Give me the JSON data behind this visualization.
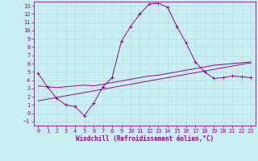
{
  "xlabel": "Windchill (Refroidissement éolien,°C)",
  "background_color": "#c8eef0",
  "grid_color": "#b0d8dc",
  "line_color": "#990099",
  "xlim": [
    -0.5,
    23.5
  ],
  "ylim": [
    -1.5,
    13.5
  ],
  "xticks": [
    0,
    1,
    2,
    3,
    4,
    5,
    6,
    7,
    8,
    9,
    10,
    11,
    12,
    13,
    14,
    15,
    16,
    17,
    18,
    19,
    20,
    21,
    22,
    23
  ],
  "yticks": [
    -1,
    0,
    1,
    2,
    3,
    4,
    5,
    6,
    7,
    8,
    9,
    10,
    11,
    12,
    13
  ],
  "line1_x": [
    0,
    1,
    2,
    3,
    4,
    5,
    6,
    7,
    8,
    9,
    10,
    11,
    12,
    13,
    14,
    15,
    16,
    17,
    18,
    19,
    20,
    21,
    22,
    23
  ],
  "line1_y": [
    4.8,
    3.2,
    1.8,
    1.0,
    0.8,
    -0.3,
    1.2,
    3.2,
    4.3,
    8.7,
    10.5,
    12.0,
    13.2,
    13.3,
    12.8,
    10.5,
    8.5,
    6.2,
    5.0,
    4.2,
    4.3,
    4.5,
    4.4,
    4.3
  ],
  "line2_x": [
    0,
    1,
    2,
    3,
    4,
    5,
    6,
    7,
    8,
    9,
    10,
    11,
    12,
    13,
    14,
    15,
    16,
    17,
    18,
    19,
    20,
    21,
    22,
    23
  ],
  "line2_y": [
    3.3,
    3.2,
    3.1,
    3.2,
    3.3,
    3.4,
    3.3,
    3.5,
    3.7,
    3.9,
    4.1,
    4.3,
    4.5,
    4.6,
    4.8,
    5.0,
    5.2,
    5.4,
    5.6,
    5.8,
    5.9,
    6.0,
    6.1,
    6.2
  ],
  "line3_x": [
    0,
    1,
    2,
    3,
    4,
    5,
    6,
    7,
    8,
    9,
    10,
    11,
    12,
    13,
    14,
    15,
    16,
    17,
    18,
    19,
    20,
    21,
    22,
    23
  ],
  "line3_y": [
    1.5,
    1.7,
    1.9,
    2.1,
    2.3,
    2.5,
    2.7,
    2.9,
    3.1,
    3.3,
    3.5,
    3.7,
    3.9,
    4.1,
    4.3,
    4.5,
    4.7,
    4.9,
    5.1,
    5.3,
    5.5,
    5.7,
    5.9,
    6.1
  ],
  "xlabel_fontsize": 5.5,
  "tick_fontsize": 5.0,
  "linewidth": 0.7,
  "markersize": 2.0
}
